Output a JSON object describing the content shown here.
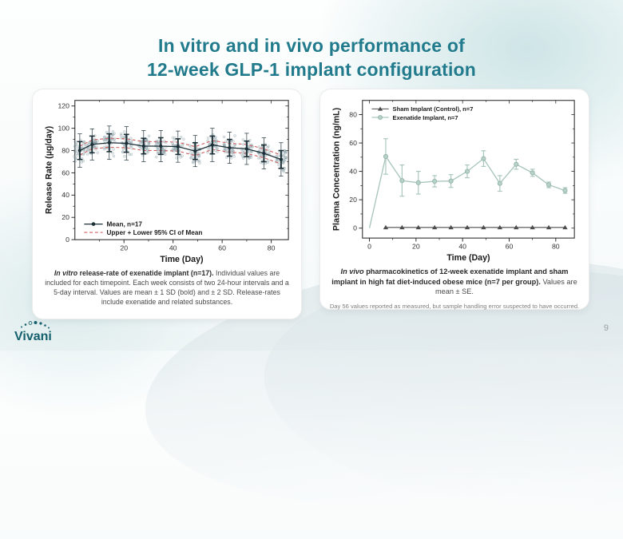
{
  "slide": {
    "title_line1": "In vitro and in vivo performance of",
    "title_line2": "12-week GLP-1 implant configuration",
    "page_number": "9",
    "logo_text": "Vivani"
  },
  "colors": {
    "accent_teal": "#217b8c",
    "logo_teal": "#14606c",
    "mean_dark": "#1c2f36",
    "ci_red": "#cd5c5c",
    "scatter_gray": "#7e979e",
    "sham_dark": "#4d4d4d",
    "exenatide_sage": "#a9c6bc",
    "exenatide_fill": "#b8d1c8",
    "exenatide_edge": "#8fb3a8",
    "axis_dark": "#2b2b2b",
    "tick_text": "#333333"
  },
  "left_caption": {
    "lead_italic": "In vitro",
    "lead_bold": " release-rate of exenatide implant (n=17).",
    "body": " Individual values are included for each timepoint. Each week consists of two 24-hour intervals and a 5-day interval. Values are mean ± 1 SD (bold) and ± 2 SD. Release-rates include exenatide and related substances."
  },
  "right_caption": {
    "lead_italic": "In vivo",
    "lead_bold": " pharmacokinetics of 12-week exenatide implant and sham implant in high fat diet-induced obese mice (n=7 per group).",
    "body": " Values are mean ± SE.",
    "footnote": "Day 56 values reported as measured, but sample handling error suspected to have occurred."
  },
  "chart_data": [
    {
      "type": "scatter",
      "title": "In vitro release rate of exenatide implant",
      "xlabel": "Time (Day)",
      "ylabel": "Release Rate (µg/day)",
      "xlim": [
        0,
        87
      ],
      "ylim": [
        0,
        125
      ],
      "xticks": [
        20,
        40,
        60,
        80
      ],
      "xminor": [
        10,
        30,
        50,
        70
      ],
      "yticks": [
        0,
        20,
        40,
        60,
        80,
        100,
        120
      ],
      "yminor": [
        10,
        30,
        50,
        70,
        90,
        110
      ],
      "grid": false,
      "days": [
        2,
        7,
        14,
        21,
        28,
        35,
        42,
        49,
        56,
        63,
        70,
        77,
        84
      ],
      "mean": [
        80,
        85.5,
        87,
        86.5,
        84,
        84,
        83.5,
        79.5,
        85,
        82.5,
        81.5,
        77.5,
        72
      ],
      "sd1": [
        8,
        7.5,
        8,
        8,
        7,
        7.5,
        7,
        7.5,
        8,
        7.5,
        7,
        7.5,
        8
      ],
      "sd2": [
        15,
        14,
        15,
        15,
        14,
        14,
        14,
        14,
        15,
        14,
        14,
        14,
        15
      ],
      "ci95": 4,
      "points_per_timepoint": 40,
      "legend": [
        "Mean, n=17",
        "Upper + Lower 95% CI of Mean"
      ],
      "legend_position": "lower-left"
    },
    {
      "type": "line",
      "title": "In vivo pharmacokinetics in obese mice",
      "xlabel": "Time (Day)",
      "ylabel": "Plasma Concentration (ng/mL)",
      "xlim": [
        -3,
        88
      ],
      "ylim": [
        -7,
        90
      ],
      "xticks": [
        0,
        20,
        40,
        60,
        80
      ],
      "xminor": [
        10,
        30,
        50,
        70
      ],
      "yticks": [
        0,
        20,
        40,
        60,
        80
      ],
      "yminor": [
        10,
        30,
        50,
        70
      ],
      "grid": false,
      "legend_position": "upper-left",
      "series": [
        {
          "name": "Sham Implant (Control), n=7",
          "marker": "triangle",
          "x": [
            7,
            14,
            21,
            28,
            35,
            42,
            49,
            56,
            63,
            70,
            77,
            84
          ],
          "values": [
            0.5,
            0.5,
            0.5,
            0.5,
            0.5,
            0.5,
            0.5,
            0.5,
            0.5,
            0.5,
            0.5,
            0.5
          ],
          "se": [
            0.8,
            0.8,
            0.8,
            0.8,
            0.8,
            0.8,
            0.8,
            0.8,
            0.8,
            0.8,
            0.8,
            0.8
          ]
        },
        {
          "name": "Exenatide Implant, n=7",
          "marker": "circle",
          "x": [
            0,
            7,
            14,
            21,
            28,
            35,
            42,
            49,
            56,
            63,
            70,
            77,
            84
          ],
          "values": [
            0,
            50.5,
            33.5,
            32,
            33,
            33.2,
            40,
            49,
            31.5,
            45,
            39,
            30.5,
            26.5
          ],
          "se": [
            0,
            12.5,
            11,
            8,
            4,
            4.5,
            4.5,
            5.5,
            5.5,
            3.5,
            2.5,
            2,
            2
          ]
        }
      ]
    }
  ]
}
